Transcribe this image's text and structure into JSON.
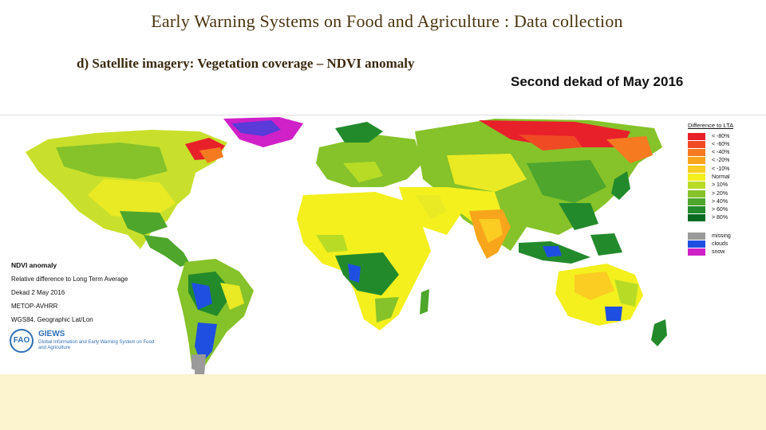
{
  "slide": {
    "title": "Early Warning Systems on Food and Agriculture : Data collection",
    "subtitle": "d) Satellite imagery: Vegetation coverage – NDVI anomaly",
    "period": "Second dekad of May 2016"
  },
  "map": {
    "info": {
      "title": "NDVI anomaly",
      "line1": "Relative difference to Long Term Average",
      "line2": "Dekad 2 May 2016",
      "line3": "METOP-AVHRR",
      "line4": "WGS84, Geographic Lat/Lon"
    },
    "logo": {
      "mark": "FAO",
      "name": "GIEWS",
      "tagline": "Global Information and Early Warning System on Food and Agriculture"
    },
    "legend": {
      "title": "Difference to LTA",
      "classes": [
        {
          "label": "< -80%",
          "color": "#e8202a"
        },
        {
          "label": "< -60%",
          "color": "#f04a24"
        },
        {
          "label": "< -40%",
          "color": "#f57a20"
        },
        {
          "label": "< -20%",
          "color": "#f8a51c"
        },
        {
          "label": "< -10%",
          "color": "#fbcc22"
        },
        {
          "label": "Normal",
          "color": "#f3f01e"
        },
        {
          "label": "> 10%",
          "color": "#b8dc26"
        },
        {
          "label": "> 20%",
          "color": "#86c22a"
        },
        {
          "label": "> 40%",
          "color": "#4ea62c"
        },
        {
          "label": "> 60%",
          "color": "#238a2c"
        },
        {
          "label": "> 80%",
          "color": "#0b6a22"
        }
      ],
      "extra": [
        {
          "label": "missing",
          "color": "#9a9a9a"
        },
        {
          "label": "clouds",
          "color": "#1f4fe0"
        },
        {
          "label": "snow",
          "color": "#d020c8"
        }
      ]
    }
  }
}
